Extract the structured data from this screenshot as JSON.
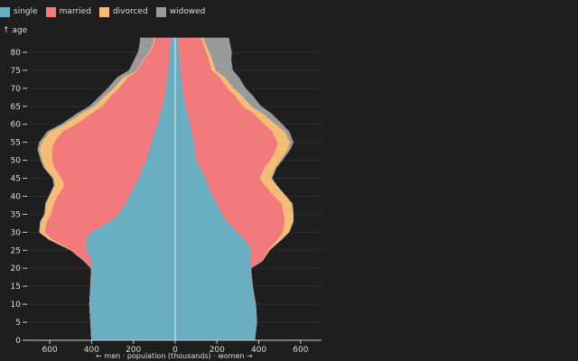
{
  "legend": {
    "items": [
      {
        "label": "single",
        "color": "#6aaec2"
      },
      {
        "label": "married",
        "color": "#f27a7d"
      },
      {
        "label": "divorced",
        "color": "#f5bc75"
      },
      {
        "label": "widowed",
        "color": "#9a9a9a"
      }
    ]
  },
  "chart_data": {
    "type": "area",
    "title": "",
    "ylabel": "↑ age",
    "xlabel": "← men · population (thousands) · women →",
    "x_ticks": [
      "600",
      "400",
      "200",
      "0",
      "200",
      "400",
      "600"
    ],
    "x_tick_values": [
      -600,
      -400,
      -200,
      0,
      200,
      400,
      600
    ],
    "y_ticks": [
      0,
      5,
      10,
      15,
      20,
      25,
      30,
      35,
      40,
      45,
      50,
      55,
      60,
      65,
      70,
      75,
      80
    ],
    "xlim": [
      -700,
      700
    ],
    "ylim": [
      0,
      84
    ],
    "grid": true,
    "legend_position": "top-left",
    "ages": [
      0,
      5,
      10,
      15,
      20,
      22,
      25,
      28,
      30,
      33,
      35,
      38,
      40,
      43,
      45,
      48,
      50,
      53,
      55,
      58,
      60,
      63,
      65,
      68,
      70,
      73,
      75,
      78,
      80,
      82,
      84
    ],
    "men": {
      "single": [
        400,
        405,
        410,
        405,
        400,
        400,
        425,
        430,
        405,
        315,
        270,
        240,
        220,
        195,
        175,
        155,
        140,
        125,
        115,
        100,
        85,
        72,
        60,
        50,
        45,
        38,
        35,
        30,
        28,
        25,
        22
      ],
      "married": [
        0,
        0,
        0,
        0,
        2,
        35,
        70,
        160,
        220,
        300,
        325,
        340,
        345,
        335,
        370,
        425,
        450,
        465,
        465,
        440,
        390,
        330,
        290,
        255,
        225,
        190,
        145,
        120,
        95,
        80,
        75
      ],
      "divorced": [
        0,
        0,
        0,
        0,
        0,
        1,
        4,
        15,
        25,
        30,
        30,
        40,
        38,
        48,
        38,
        45,
        48,
        60,
        60,
        60,
        55,
        50,
        40,
        30,
        27,
        22,
        5,
        5,
        5,
        5,
        5
      ],
      "widowed": [
        0,
        0,
        0,
        0,
        0,
        0,
        0,
        0,
        0,
        0,
        0,
        0,
        0,
        2,
        3,
        4,
        5,
        8,
        10,
        12,
        15,
        18,
        20,
        22,
        25,
        28,
        35,
        40,
        50,
        60,
        65
      ]
    },
    "women": {
      "single": [
        380,
        390,
        385,
        370,
        360,
        360,
        365,
        335,
        300,
        250,
        225,
        200,
        180,
        160,
        145,
        120,
        100,
        95,
        90,
        80,
        72,
        60,
        50,
        40,
        36,
        30,
        25,
        22,
        20,
        18,
        16
      ],
      "married": [
        0,
        0,
        0,
        0,
        2,
        55,
        80,
        155,
        215,
        275,
        295,
        310,
        295,
        270,
        260,
        310,
        355,
        390,
        400,
        385,
        355,
        315,
        275,
        245,
        215,
        185,
        150,
        140,
        130,
        120,
        110
      ],
      "divorced": [
        0,
        0,
        0,
        0,
        0,
        2,
        6,
        20,
        30,
        40,
        45,
        50,
        55,
        55,
        55,
        50,
        50,
        55,
        60,
        60,
        55,
        45,
        40,
        35,
        30,
        25,
        20,
        15,
        15,
        10,
        10
      ],
      "widowed": [
        0,
        0,
        0,
        0,
        0,
        0,
        0,
        0,
        0,
        0,
        0,
        0,
        1,
        2,
        3,
        5,
        8,
        10,
        15,
        20,
        30,
        40,
        45,
        50,
        55,
        65,
        80,
        90,
        105,
        115,
        120
      ]
    }
  }
}
